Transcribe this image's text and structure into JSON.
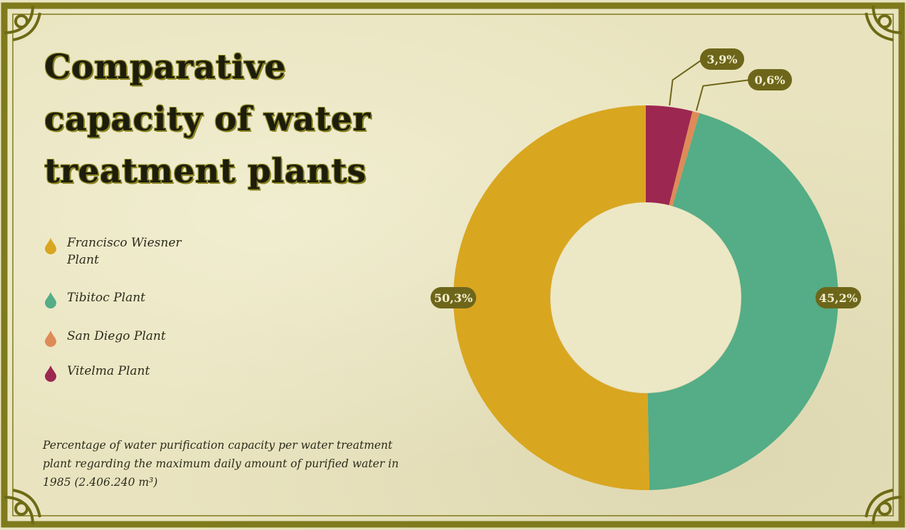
{
  "title_lines": [
    "Comparative",
    "capacity of water",
    "treatment plants"
  ],
  "legend": [
    {
      "label_lines": [
        "Francisco Wiesner",
        "Plant"
      ],
      "color": "#d9a620"
    },
    {
      "label_lines": [
        "Tibitoc Plant"
      ],
      "color": "#54ad86"
    },
    {
      "label_lines": [
        "San Diego Plant"
      ],
      "color": "#df8b58"
    },
    {
      "label_lines": [
        "Vitelma Plant"
      ],
      "color": "#9c2750"
    }
  ],
  "note": "Percentage of water purification capacity per water treatment plant regarding the maximum daily amount of purified water in 1985 (2.406.240 m³)",
  "colors": {
    "background": "#e9e4bf",
    "frame": "#7f7a1c",
    "label_bg": "#6d661a",
    "title_outline": "#8a8420"
  },
  "chart_data": {
    "type": "pie",
    "variant": "donut",
    "categories": [
      "Vitelma Plant",
      "San Diego Plant",
      "Tibitoc Plant",
      "Francisco Wiesner Plant"
    ],
    "values": [
      3.9,
      0.6,
      45.2,
      50.3
    ],
    "value_labels": [
      "3,9%",
      "0,6%",
      "45,2%",
      "50,3%"
    ],
    "colors": [
      "#9c2750",
      "#df8b58",
      "#54ad86",
      "#d9a620"
    ],
    "unit": "%",
    "legend_position": "left"
  }
}
